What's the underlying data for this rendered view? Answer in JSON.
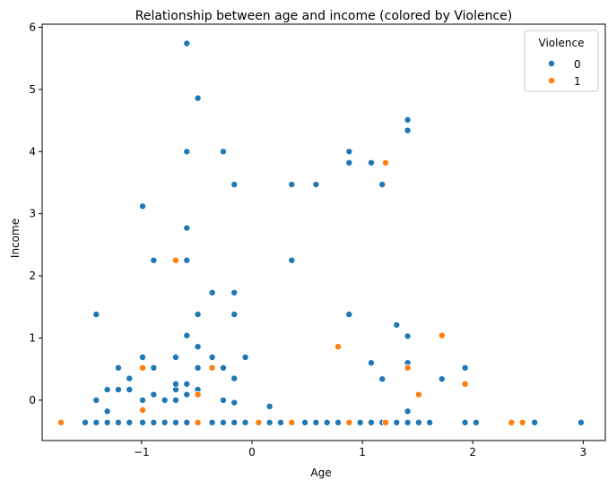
{
  "chart_data": {
    "type": "scatter",
    "title": "Relationship between age and income (colored by Violence)",
    "xlabel": "Age",
    "ylabel": "Income",
    "xlim": [
      -1.9,
      3.2
    ],
    "ylim": [
      -0.65,
      6.05
    ],
    "xticks": [
      "−1",
      "0",
      "1",
      "2",
      "3"
    ],
    "xtick_values": [
      -1,
      0,
      1,
      2,
      3
    ],
    "yticks": [
      "0",
      "1",
      "2",
      "3",
      "4",
      "5",
      "6"
    ],
    "ytick_values": [
      0,
      1,
      2,
      3,
      4,
      5,
      6
    ],
    "grid": false,
    "legend": {
      "title": "Violence",
      "placement": "top-right"
    },
    "series": [
      {
        "name": "0",
        "color": "#1f77b4",
        "points": [
          [
            -1.51,
            -0.36
          ],
          [
            -1.41,
            -0.36
          ],
          [
            -1.31,
            -0.36
          ],
          [
            -1.21,
            -0.36
          ],
          [
            -1.11,
            -0.36
          ],
          [
            -0.99,
            -0.36
          ],
          [
            -0.89,
            -0.36
          ],
          [
            -0.79,
            -0.36
          ],
          [
            -0.69,
            -0.36
          ],
          [
            -0.59,
            -0.36
          ],
          [
            -0.49,
            -0.36
          ],
          [
            -0.36,
            -0.36
          ],
          [
            -0.26,
            -0.36
          ],
          [
            -0.16,
            -0.36
          ],
          [
            -0.06,
            -0.36
          ],
          [
            0.06,
            -0.36
          ],
          [
            0.16,
            -0.36
          ],
          [
            0.26,
            -0.36
          ],
          [
            0.36,
            -0.36
          ],
          [
            0.48,
            -0.36
          ],
          [
            0.58,
            -0.36
          ],
          [
            0.68,
            -0.36
          ],
          [
            0.78,
            -0.36
          ],
          [
            0.98,
            -0.36
          ],
          [
            1.08,
            -0.36
          ],
          [
            1.18,
            -0.36
          ],
          [
            1.31,
            -0.36
          ],
          [
            1.41,
            -0.36
          ],
          [
            1.51,
            -0.36
          ],
          [
            1.61,
            -0.36
          ],
          [
            1.93,
            -0.36
          ],
          [
            2.03,
            -0.36
          ],
          [
            2.56,
            -0.36
          ],
          [
            2.98,
            -0.36
          ],
          [
            -1.41,
            1.38
          ],
          [
            -1.41,
            0.0
          ],
          [
            -1.31,
            -0.18
          ],
          [
            -1.31,
            0.17
          ],
          [
            -1.21,
            0.17
          ],
          [
            -1.21,
            0.52
          ],
          [
            -1.11,
            0.17
          ],
          [
            -1.11,
            0.35
          ],
          [
            -0.99,
            0.0
          ],
          [
            -0.99,
            0.69
          ],
          [
            -0.99,
            3.12
          ],
          [
            -0.89,
            0.52
          ],
          [
            -0.89,
            0.09
          ],
          [
            -0.89,
            2.25
          ],
          [
            -0.79,
            0.0
          ],
          [
            -0.69,
            0.0
          ],
          [
            -0.69,
            0.17
          ],
          [
            -0.69,
            0.26
          ],
          [
            -0.69,
            0.69
          ],
          [
            -0.59,
            0.09
          ],
          [
            -0.59,
            0.26
          ],
          [
            -0.59,
            1.04
          ],
          [
            -0.59,
            2.25
          ],
          [
            -0.59,
            2.77
          ],
          [
            -0.59,
            4.0
          ],
          [
            -0.59,
            5.74
          ],
          [
            -0.49,
            0.17
          ],
          [
            -0.49,
            0.52
          ],
          [
            -0.49,
            0.86
          ],
          [
            -0.49,
            1.38
          ],
          [
            -0.49,
            4.86
          ],
          [
            -0.36,
            0.69
          ],
          [
            -0.36,
            1.73
          ],
          [
            -0.26,
            0.52
          ],
          [
            -0.26,
            0.0
          ],
          [
            -0.26,
            4.0
          ],
          [
            -0.16,
            0.35
          ],
          [
            -0.16,
            -0.04
          ],
          [
            -0.16,
            1.38
          ],
          [
            -0.16,
            1.73
          ],
          [
            -0.16,
            3.47
          ],
          [
            -0.06,
            0.69
          ],
          [
            0.16,
            -0.1
          ],
          [
            0.36,
            2.25
          ],
          [
            0.36,
            3.47
          ],
          [
            0.58,
            3.47
          ],
          [
            0.88,
            4.0
          ],
          [
            0.88,
            3.82
          ],
          [
            0.88,
            1.38
          ],
          [
            1.08,
            3.82
          ],
          [
            1.08,
            0.6
          ],
          [
            1.18,
            3.47
          ],
          [
            1.18,
            0.34
          ],
          [
            1.31,
            1.21
          ],
          [
            1.41,
            4.51
          ],
          [
            1.41,
            4.34
          ],
          [
            1.41,
            1.03
          ],
          [
            1.41,
            0.6
          ],
          [
            1.41,
            -0.18
          ],
          [
            1.72,
            0.34
          ],
          [
            1.93,
            0.52
          ]
        ]
      },
      {
        "name": "1",
        "color": "#ff7f0e",
        "points": [
          [
            -1.73,
            -0.36
          ],
          [
            -0.99,
            0.52
          ],
          [
            -0.99,
            -0.16
          ],
          [
            -0.69,
            2.25
          ],
          [
            -0.49,
            0.09
          ],
          [
            -0.49,
            -0.36
          ],
          [
            -0.36,
            0.52
          ],
          [
            0.06,
            -0.36
          ],
          [
            0.36,
            -0.36
          ],
          [
            0.78,
            0.86
          ],
          [
            0.88,
            -0.36
          ],
          [
            1.21,
            3.82
          ],
          [
            1.21,
            -0.36
          ],
          [
            1.41,
            0.52
          ],
          [
            1.51,
            0.09
          ],
          [
            1.72,
            1.04
          ],
          [
            1.93,
            0.26
          ],
          [
            2.35,
            -0.36
          ],
          [
            2.45,
            -0.36
          ]
        ]
      }
    ]
  }
}
